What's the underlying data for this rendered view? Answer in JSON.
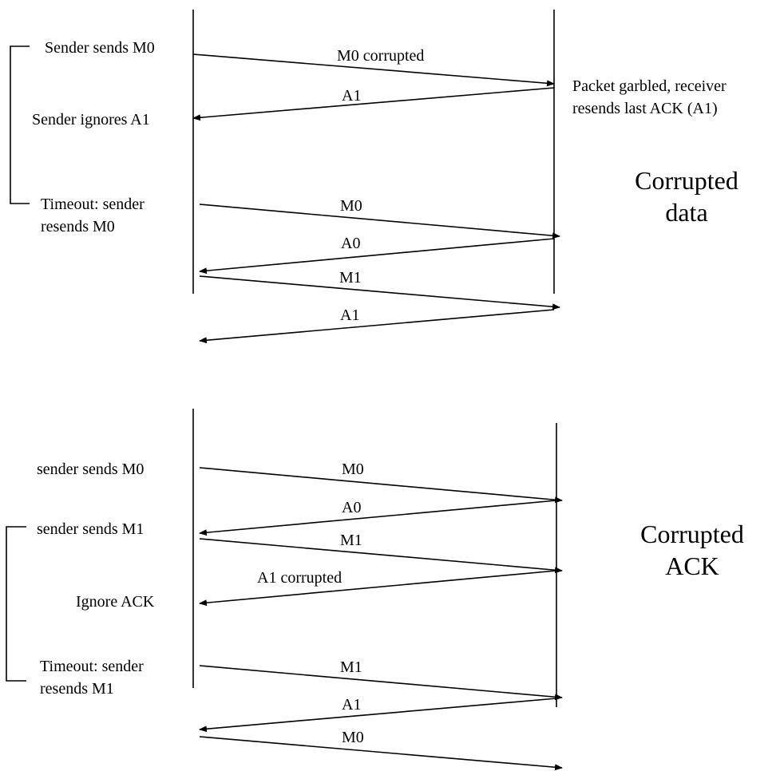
{
  "top": {
    "side_label": [
      "Corrupted",
      "data"
    ],
    "left_notes": {
      "n1": "Sender sends M0",
      "n2": "Sender ignores A1",
      "n3a": "Timeout: sender",
      "n3b": "resends M0"
    },
    "right_note": [
      "Packet garbled, receiver",
      "resends last ACK  (A1)"
    ],
    "messages": {
      "m1": "M0 corrupted",
      "m2": "A1",
      "m3": "M0",
      "m4": "A0",
      "m5": "M1",
      "m6": "A1"
    }
  },
  "bottom": {
    "side_label": [
      "Corrupted",
      "ACK"
    ],
    "left_notes": {
      "n1": "sender sends M0",
      "n2": "sender sends M1",
      "n3": "Ignore ACK",
      "n4a": "Timeout: sender",
      "n4b": "resends M1"
    },
    "messages": {
      "m1": "M0",
      "m2": "A0",
      "m3": "M1",
      "m4": "A1 corrupted",
      "m5": "M1",
      "m6": "A1",
      "m7": "M0"
    }
  }
}
